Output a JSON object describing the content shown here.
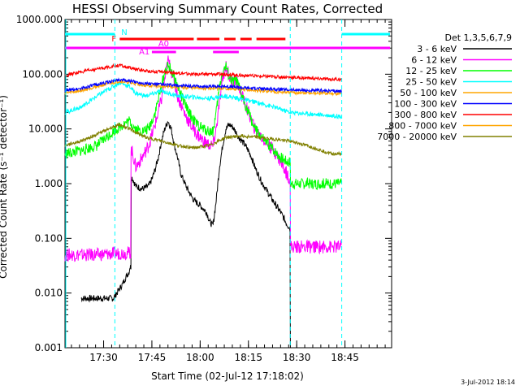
{
  "chart_data": {
    "type": "line",
    "title": "HESSI Observing Summary Count Rates, Corrected",
    "xlabel": "Start Time (02-Jul-12 17:18:02)",
    "ylabel": "Corrected Count Rate (s⁻¹ detector⁻¹)",
    "timestamp": "3-Jul-2012 18:14",
    "y_scale": "log",
    "ylim": [
      0.001,
      1000
    ],
    "xlim_minutes_after_17_18": [
      0,
      101.5
    ],
    "ytick_labels": [
      "0.001",
      "0.010",
      "0.100",
      "1.000",
      "10.000",
      "100.000",
      "1000.000"
    ],
    "xtick_labels": [
      "17:30",
      "17:45",
      "18:00",
      "18:15",
      "18:30",
      "18:45"
    ],
    "legend_title": "Det 1,3,5,6,7,9",
    "night_label": "N",
    "flag_labels": [
      "F",
      "A0",
      "A1"
    ],
    "series": [
      {
        "name": "3 - 6 keV",
        "color": "#000000",
        "points": [
          [
            5,
            0.008
          ],
          [
            15,
            0.008
          ],
          [
            17,
            0.012
          ],
          [
            18,
            0.015
          ],
          [
            19,
            0.02
          ],
          [
            20,
            0.025
          ],
          [
            20.5,
            0.03
          ],
          [
            20.8,
            1.3
          ],
          [
            22,
            0.9
          ],
          [
            24,
            0.8
          ],
          [
            26,
            0.9
          ],
          [
            27,
            1.2
          ],
          [
            28,
            1.8
          ],
          [
            29,
            3
          ],
          [
            30,
            6
          ],
          [
            31,
            10
          ],
          [
            32,
            14
          ],
          [
            33,
            10
          ],
          [
            34,
            5
          ],
          [
            35,
            3
          ],
          [
            36,
            1.5
          ],
          [
            38,
            0.8
          ],
          [
            40,
            0.5
          ],
          [
            42,
            0.4
          ],
          [
            44,
            0.3
          ],
          [
            45,
            0.2
          ],
          [
            46,
            0.17
          ],
          [
            47,
            0.5
          ],
          [
            48,
            2
          ],
          [
            49,
            5
          ],
          [
            50,
            10
          ],
          [
            51,
            12
          ],
          [
            52,
            11
          ],
          [
            53,
            9
          ],
          [
            54,
            7
          ],
          [
            55,
            6
          ],
          [
            56,
            5
          ],
          [
            57,
            4
          ],
          [
            58,
            3
          ],
          [
            59,
            2
          ],
          [
            61,
            1.1
          ],
          [
            63,
            0.7
          ],
          [
            65,
            0.45
          ],
          [
            67,
            0.3
          ],
          [
            69,
            0.18
          ],
          [
            70,
            0.15
          ],
          [
            70.5,
            0.0008
          ]
        ]
      },
      {
        "name": "6 - 12 keV",
        "color": "#ff00ff",
        "points": [
          [
            0,
            0.05
          ],
          [
            10,
            0.05
          ],
          [
            20.5,
            0.055
          ],
          [
            20.8,
            4
          ],
          [
            22,
            2
          ],
          [
            24,
            3
          ],
          [
            26,
            5
          ],
          [
            28,
            12
          ],
          [
            30,
            35
          ],
          [
            32,
            180
          ],
          [
            33,
            120
          ],
          [
            35,
            40
          ],
          [
            37,
            20
          ],
          [
            39,
            12
          ],
          [
            41,
            8
          ],
          [
            43,
            6
          ],
          [
            45,
            5
          ],
          [
            46,
            5
          ],
          [
            47,
            10
          ],
          [
            48,
            30
          ],
          [
            49,
            80
          ],
          [
            50,
            150
          ],
          [
            51,
            90
          ],
          [
            52,
            70
          ],
          [
            53,
            80
          ],
          [
            54,
            60
          ],
          [
            55,
            40
          ],
          [
            57,
            20
          ],
          [
            59,
            10
          ],
          [
            62,
            6
          ],
          [
            65,
            4
          ],
          [
            67,
            2.5
          ],
          [
            69,
            1.5
          ],
          [
            70,
            1.2
          ],
          [
            70.5,
            0.07
          ],
          [
            74,
            0.07
          ],
          [
            86,
            0.07
          ]
        ]
      },
      {
        "name": "12 - 25 keV",
        "color": "#00ff00",
        "points": [
          [
            0,
            3.5
          ],
          [
            5,
            4
          ],
          [
            10,
            5
          ],
          [
            15,
            9
          ],
          [
            18,
            12
          ],
          [
            20,
            14
          ],
          [
            22,
            10
          ],
          [
            24,
            9
          ],
          [
            26,
            10
          ],
          [
            28,
            20
          ],
          [
            30,
            60
          ],
          [
            31,
            110
          ],
          [
            32,
            140
          ],
          [
            33,
            120
          ],
          [
            35,
            60
          ],
          [
            37,
            30
          ],
          [
            39,
            18
          ],
          [
            41,
            12
          ],
          [
            43,
            10
          ],
          [
            45,
            9
          ],
          [
            46,
            9
          ],
          [
            47,
            20
          ],
          [
            48,
            60
          ],
          [
            49,
            110
          ],
          [
            50,
            140
          ],
          [
            51,
            90
          ],
          [
            52,
            70
          ],
          [
            53,
            80
          ],
          [
            54,
            60
          ],
          [
            55,
            40
          ],
          [
            57,
            20
          ],
          [
            59,
            10
          ],
          [
            62,
            6
          ],
          [
            65,
            4
          ],
          [
            67,
            3
          ],
          [
            69,
            2.5
          ],
          [
            70,
            2.5
          ],
          [
            70.5,
            1
          ],
          [
            86,
            1
          ]
        ]
      },
      {
        "name": "25 - 50 keV",
        "color": "#00ffff",
        "points": [
          [
            0,
            20
          ],
          [
            5,
            25
          ],
          [
            10,
            40
          ],
          [
            15,
            60
          ],
          [
            17,
            70
          ],
          [
            20,
            60
          ],
          [
            22,
            45
          ],
          [
            25,
            40
          ],
          [
            28,
            45
          ],
          [
            30,
            50
          ],
          [
            32,
            45
          ],
          [
            35,
            40
          ],
          [
            40,
            38
          ],
          [
            45,
            36
          ],
          [
            50,
            40
          ],
          [
            55,
            35
          ],
          [
            60,
            30
          ],
          [
            65,
            25
          ],
          [
            70,
            20
          ],
          [
            75,
            19
          ],
          [
            80,
            18
          ],
          [
            86,
            17
          ]
        ]
      },
      {
        "name": "50 - 100 keV",
        "color": "#ffa500",
        "points": [
          [
            0,
            45
          ],
          [
            5,
            50
          ],
          [
            10,
            60
          ],
          [
            15,
            70
          ],
          [
            17,
            75
          ],
          [
            20,
            70
          ],
          [
            25,
            62
          ],
          [
            30,
            60
          ],
          [
            35,
            58
          ],
          [
            40,
            56
          ],
          [
            45,
            55
          ],
          [
            50,
            55
          ],
          [
            55,
            52
          ],
          [
            60,
            50
          ],
          [
            65,
            48
          ],
          [
            70,
            46
          ],
          [
            75,
            45
          ],
          [
            80,
            45
          ],
          [
            86,
            44
          ]
        ]
      },
      {
        "name": "100 - 300 keV",
        "color": "#0000ff",
        "points": [
          [
            0,
            50
          ],
          [
            5,
            55
          ],
          [
            10,
            65
          ],
          [
            15,
            75
          ],
          [
            17,
            80
          ],
          [
            20,
            75
          ],
          [
            25,
            68
          ],
          [
            30,
            65
          ],
          [
            35,
            62
          ],
          [
            40,
            60
          ],
          [
            45,
            60
          ],
          [
            50,
            60
          ],
          [
            55,
            57
          ],
          [
            60,
            55
          ],
          [
            65,
            53
          ],
          [
            70,
            52
          ],
          [
            75,
            50
          ],
          [
            80,
            50
          ],
          [
            86,
            49
          ]
        ]
      },
      {
        "name": "300 - 800 keV",
        "color": "#ff0000",
        "points": [
          [
            0,
            95
          ],
          [
            5,
            110
          ],
          [
            10,
            125
          ],
          [
            15,
            140
          ],
          [
            17,
            145
          ],
          [
            20,
            130
          ],
          [
            25,
            115
          ],
          [
            30,
            110
          ],
          [
            35,
            105
          ],
          [
            40,
            100
          ],
          [
            45,
            100
          ],
          [
            50,
            100
          ],
          [
            55,
            95
          ],
          [
            60,
            92
          ],
          [
            65,
            90
          ],
          [
            70,
            88
          ],
          [
            75,
            85
          ],
          [
            80,
            82
          ],
          [
            86,
            80
          ]
        ]
      },
      {
        "name": "7000 - 20000 keV",
        "color": "#808000",
        "points": [
          [
            0,
            5
          ],
          [
            5,
            6
          ],
          [
            10,
            8
          ],
          [
            15,
            11
          ],
          [
            17,
            12
          ],
          [
            20,
            10
          ],
          [
            25,
            7
          ],
          [
            30,
            6
          ],
          [
            35,
            5
          ],
          [
            40,
            4.5
          ],
          [
            45,
            5
          ],
          [
            50,
            7
          ],
          [
            55,
            7.5
          ],
          [
            60,
            7
          ],
          [
            65,
            6.5
          ],
          [
            70,
            6
          ],
          [
            75,
            5
          ],
          [
            80,
            4
          ],
          [
            83,
            3.5
          ],
          [
            86,
            3.5
          ]
        ]
      }
    ],
    "legend_entries": [
      {
        "label": "3 - 6 keV",
        "color": "#000000"
      },
      {
        "label": "6 - 12 keV",
        "color": "#ff00ff"
      },
      {
        "label": "12 - 25 keV",
        "color": "#00ff00"
      },
      {
        "label": "25 - 50 keV",
        "color": "#00ffff"
      },
      {
        "label": "50 - 100 keV",
        "color": "#ffa500"
      },
      {
        "label": "100 - 300 keV",
        "color": "#0000ff"
      },
      {
        "label": "300 - 800 keV",
        "color": "#ff0000"
      },
      {
        "label": "800 - 7000 keV",
        "color": "#ffa500"
      },
      {
        "label": "7000 - 20000 keV",
        "color": "#808000"
      }
    ],
    "vertical_markers_minutes": [
      15.5,
      70,
      86
    ]
  }
}
